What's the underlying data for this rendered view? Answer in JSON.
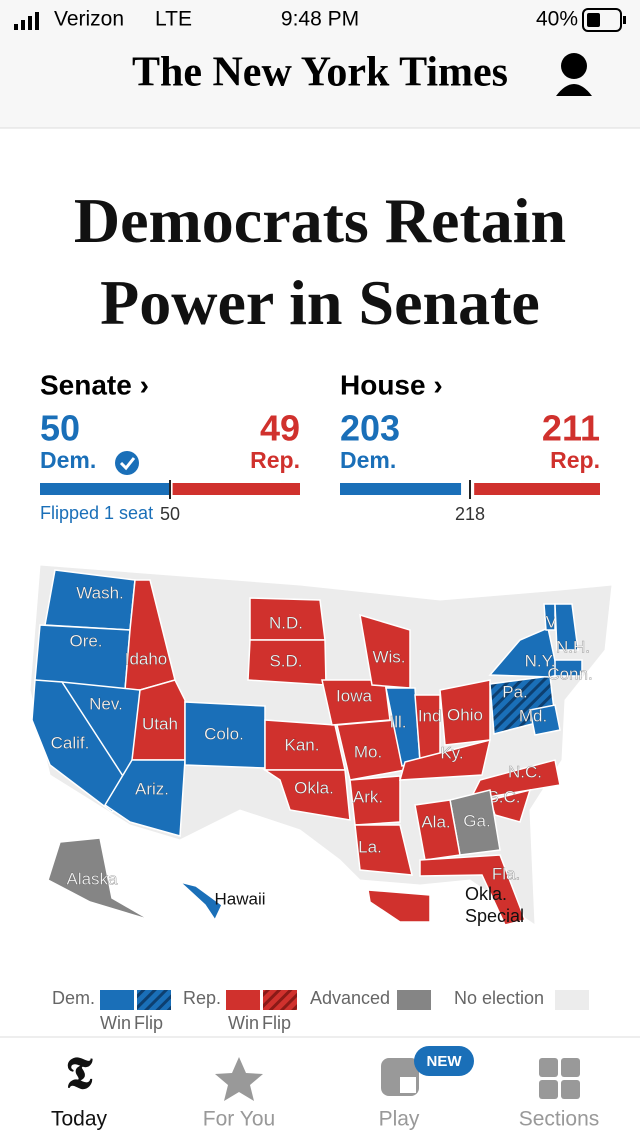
{
  "status_bar": {
    "carrier": "Verizon",
    "network": "LTE",
    "time": "9:48 PM",
    "battery": "40%"
  },
  "header": {
    "masthead": "The New York Times"
  },
  "headline": "Democrats Retain Power in Senate",
  "races": [
    {
      "title": "Senate ›",
      "dem_seats": 50,
      "dem_label": "Dem.",
      "rep_seats": 49,
      "rep_label": "Rep.",
      "majority": 50,
      "note": "Flipped 1 seat"
    },
    {
      "title": "House ›",
      "dem_seats": 203,
      "dem_label": "Dem.",
      "rep_seats": 211,
      "rep_label": "Rep.",
      "majority": 218
    }
  ],
  "map": {
    "colors": {
      "dem": "#1a6fb8",
      "rep": "#d0312d",
      "advanced": "#858585",
      "none": "#ececec"
    },
    "states": [
      {
        "label": "Wash.",
        "party": "dem"
      },
      {
        "label": "Ore.",
        "party": "dem"
      },
      {
        "label": "Idaho",
        "party": "rep"
      },
      {
        "label": "Nev.",
        "party": "dem"
      },
      {
        "label": "Calif.",
        "party": "dem"
      },
      {
        "label": "Utah",
        "party": "rep"
      },
      {
        "label": "Ariz.",
        "party": "dem"
      },
      {
        "label": "Colo.",
        "party": "dem"
      },
      {
        "label": "N.D.",
        "party": "rep"
      },
      {
        "label": "S.D.",
        "party": "rep"
      },
      {
        "label": "Kan.",
        "party": "rep"
      },
      {
        "label": "Okla.",
        "party": "rep"
      },
      {
        "label": "Iowa",
        "party": "rep"
      },
      {
        "label": "Mo.",
        "party": "rep"
      },
      {
        "label": "Ark.",
        "party": "rep"
      },
      {
        "label": "La.",
        "party": "rep"
      },
      {
        "label": "Wis.",
        "party": "rep"
      },
      {
        "label": "Ill.",
        "party": "dem"
      },
      {
        "label": "Ind.",
        "party": "rep"
      },
      {
        "label": "Ohio",
        "party": "rep"
      },
      {
        "label": "Ky.",
        "party": "rep"
      },
      {
        "label": "Pa.",
        "party": "dem",
        "flip": true
      },
      {
        "label": "N.Y.",
        "party": "dem"
      },
      {
        "label": "Vt.",
        "party": "dem"
      },
      {
        "label": "N.H.",
        "party": "dem"
      },
      {
        "label": "Conn.",
        "party": "dem"
      },
      {
        "label": "Md.",
        "party": "dem"
      },
      {
        "label": "N.C.",
        "party": "rep"
      },
      {
        "label": "S.C.",
        "party": "rep"
      },
      {
        "label": "Ga.",
        "party": "advanced"
      },
      {
        "label": "Ala.",
        "party": "rep"
      },
      {
        "label": "Fla.",
        "party": "rep"
      },
      {
        "label": "Alaska",
        "party": "advanced"
      },
      {
        "label": "Hawaii",
        "party": "dem"
      },
      {
        "label": "Okla. Special",
        "party": "rep"
      }
    ]
  },
  "legend": {
    "dem": "Dem.",
    "rep": "Rep.",
    "win": "Win",
    "flip": "Flip",
    "advanced": "Advanced",
    "none": "No election"
  },
  "tabs": [
    {
      "label": "Today"
    },
    {
      "label": "For You"
    },
    {
      "label": "Play",
      "badge": "NEW"
    },
    {
      "label": "Sections"
    }
  ]
}
